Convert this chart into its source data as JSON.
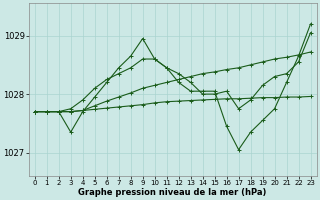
{
  "xlabel_label": "Graphe pression niveau de la mer (hPa)",
  "background_color": "#cce8e5",
  "grid_color": "#aad4d0",
  "line_color": "#1a5c1a",
  "ylim": [
    1026.6,
    1029.55
  ],
  "yticks": [
    1027,
    1028,
    1029
  ],
  "x_ticks": [
    0,
    1,
    2,
    3,
    4,
    5,
    6,
    7,
    8,
    9,
    10,
    11,
    12,
    13,
    14,
    15,
    16,
    17,
    18,
    19,
    20,
    21,
    22,
    23
  ],
  "series": [
    [
      1027.7,
      1027.7,
      1027.7,
      1027.35,
      1027.7,
      1027.95,
      1028.2,
      1028.45,
      1028.65,
      1028.95,
      1028.6,
      1028.45,
      1028.2,
      1028.05,
      1028.05,
      1028.05,
      1027.45,
      1027.05,
      1027.35,
      1027.55,
      1027.75,
      1028.2,
      1028.65,
      1029.2
    ],
    [
      1027.7,
      1027.7,
      1027.7,
      1027.75,
      1027.9,
      1028.1,
      1028.25,
      1028.35,
      1028.45,
      1028.6,
      1028.6,
      1028.45,
      1028.35,
      1028.2,
      1028.0,
      1028.0,
      1028.05,
      1027.75,
      1027.9,
      1028.15,
      1028.3,
      1028.35,
      1028.55,
      1029.05
    ],
    [
      1027.7,
      1027.7,
      1027.7,
      1027.7,
      1027.72,
      1027.8,
      1027.88,
      1027.95,
      1028.02,
      1028.1,
      1028.15,
      1028.2,
      1028.25,
      1028.3,
      1028.35,
      1028.38,
      1028.42,
      1028.45,
      1028.5,
      1028.55,
      1028.6,
      1028.63,
      1028.67,
      1028.72
    ],
    [
      1027.7,
      1027.7,
      1027.7,
      1027.7,
      1027.72,
      1027.74,
      1027.76,
      1027.78,
      1027.8,
      1027.82,
      1027.85,
      1027.87,
      1027.88,
      1027.89,
      1027.9,
      1027.91,
      1027.92,
      1027.92,
      1027.93,
      1027.94,
      1027.94,
      1027.95,
      1027.95,
      1027.96
    ]
  ],
  "marker": "+",
  "markersize": 3,
  "linewidth": 0.8,
  "tick_fontsize": 5,
  "xlabel_fontsize": 6,
  "figsize": [
    3.2,
    2.0
  ],
  "dpi": 100
}
